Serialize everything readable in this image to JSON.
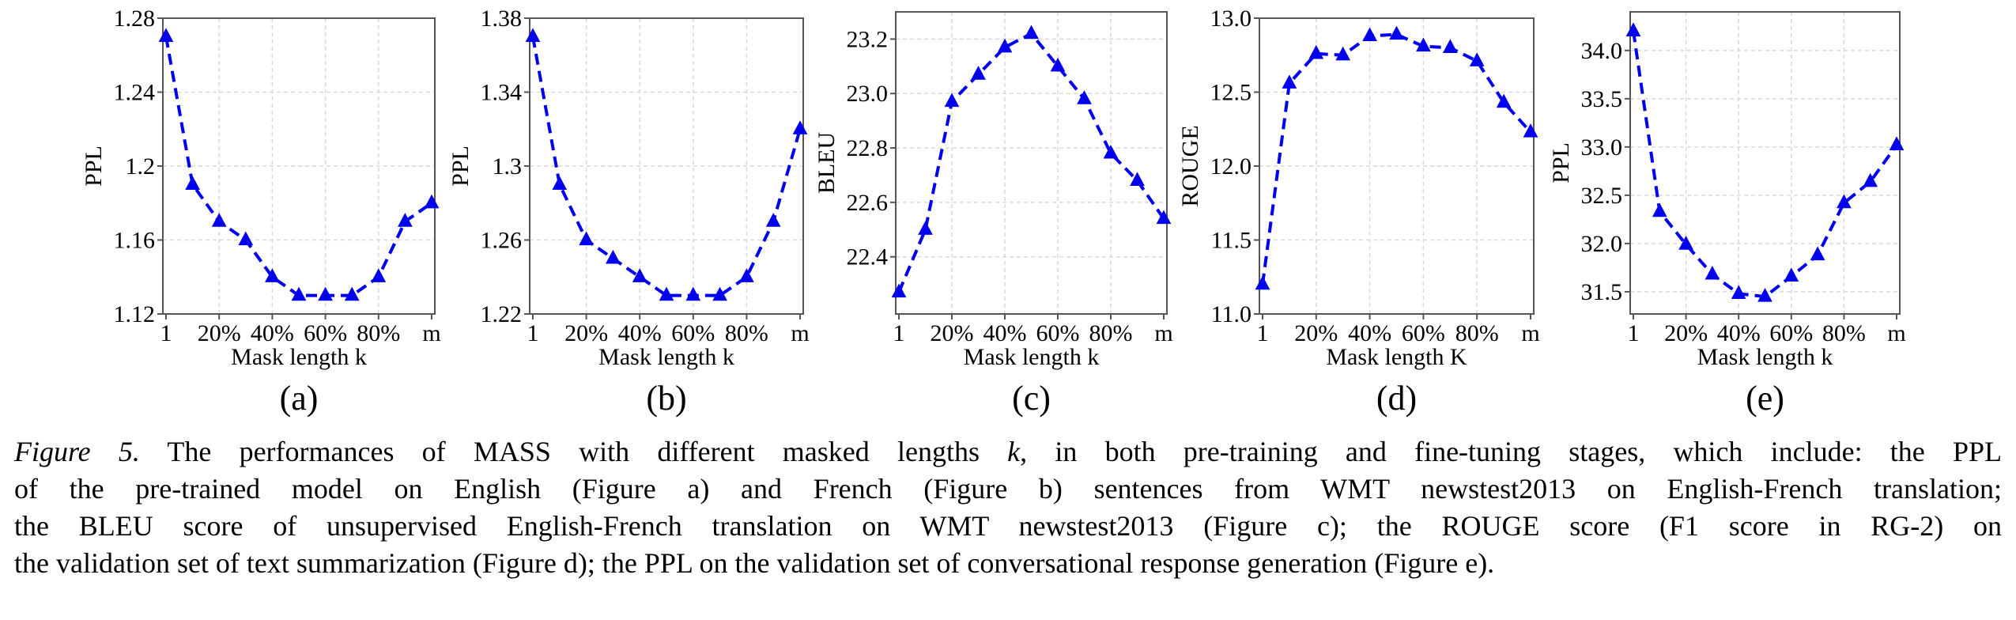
{
  "style": {
    "line_color": "#0000ee",
    "grid_color": "#d9d9d9",
    "axis_color": "#555555"
  },
  "chart_data": [
    {
      "type": "line",
      "panel": "(a)",
      "ylabel": "PPL",
      "xlabel": "Mask length k",
      "categories": [
        "1",
        "10%",
        "20%",
        "30%",
        "40%",
        "50%",
        "60%",
        "70%",
        "80%",
        "90%",
        "m"
      ],
      "xtick_labels": [
        "1",
        "20%",
        "40%",
        "60%",
        "80%",
        "m"
      ],
      "values": [
        1.27,
        1.19,
        1.17,
        1.16,
        1.14,
        1.13,
        1.13,
        1.13,
        1.14,
        1.17,
        1.18
      ],
      "ylim": [
        1.12,
        1.28
      ],
      "yticks": [
        1.12,
        1.16,
        1.2,
        1.24,
        1.28
      ],
      "ytick_labels": [
        "1.12",
        "1.16",
        "1.2",
        "1.24",
        "1.28"
      ],
      "grid": true,
      "marker": "triangle",
      "linestyle": "dashed"
    },
    {
      "type": "line",
      "panel": "(b)",
      "ylabel": "PPL",
      "xlabel": "Mask length k",
      "categories": [
        "1",
        "10%",
        "20%",
        "30%",
        "40%",
        "50%",
        "60%",
        "70%",
        "80%",
        "90%",
        "m"
      ],
      "xtick_labels": [
        "1",
        "20%",
        "40%",
        "60%",
        "80%",
        "m"
      ],
      "values": [
        1.37,
        1.29,
        1.26,
        1.25,
        1.24,
        1.23,
        1.23,
        1.23,
        1.24,
        1.27,
        1.32
      ],
      "ylim": [
        1.22,
        1.38
      ],
      "yticks": [
        1.22,
        1.26,
        1.3,
        1.34,
        1.38
      ],
      "ytick_labels": [
        "1.22",
        "1.26",
        "1.3",
        "1.34",
        "1.38"
      ],
      "grid": true,
      "marker": "triangle",
      "linestyle": "dashed"
    },
    {
      "type": "line",
      "panel": "(c)",
      "ylabel": "BLEU",
      "xlabel": "Mask length k",
      "categories": [
        "1",
        "10%",
        "20%",
        "30%",
        "40%",
        "50%",
        "60%",
        "70%",
        "80%",
        "90%",
        "m"
      ],
      "xtick_labels": [
        "1",
        "20%",
        "40%",
        "60%",
        "80%",
        "m"
      ],
      "values": [
        22.27,
        22.5,
        22.97,
        23.07,
        23.17,
        23.22,
        23.1,
        22.98,
        22.78,
        22.68,
        22.54
      ],
      "ylim": [
        22.19,
        23.3
      ],
      "yticks": [
        22.4,
        22.6,
        22.8,
        23.0,
        23.2
      ],
      "ytick_labels": [
        "22.4",
        "22.6",
        "22.8",
        "23.0",
        "23.2"
      ],
      "grid": true,
      "marker": "triangle",
      "linestyle": "dashed"
    },
    {
      "type": "line",
      "panel": "(d)",
      "ylabel": "ROUGE",
      "xlabel": "Mask length K",
      "categories": [
        "1",
        "10%",
        "20%",
        "30%",
        "40%",
        "50%",
        "60%",
        "70%",
        "80%",
        "90%",
        "m"
      ],
      "xtick_labels": [
        "1",
        "20%",
        "40%",
        "60%",
        "80%",
        "m"
      ],
      "values": [
        11.2,
        12.56,
        12.76,
        12.75,
        12.88,
        12.89,
        12.81,
        12.8,
        12.71,
        12.43,
        12.23
      ],
      "ylim": [
        11.0,
        13.0
      ],
      "yticks": [
        11.0,
        11.5,
        12.0,
        12.5,
        13.0
      ],
      "ytick_labels": [
        "11.0",
        "11.5",
        "12.0",
        "12.5",
        "13.0"
      ],
      "grid": true,
      "marker": "triangle",
      "linestyle": "dashed"
    },
    {
      "type": "line",
      "panel": "(e)",
      "ylabel": "PPL",
      "xlabel": "Mask length k",
      "categories": [
        "1",
        "10%",
        "20%",
        "30%",
        "40%",
        "50%",
        "60%",
        "70%",
        "80%",
        "90%",
        "m"
      ],
      "xtick_labels": [
        "1",
        "20%",
        "40%",
        "60%",
        "80%",
        "m"
      ],
      "values": [
        34.2,
        32.33,
        31.99,
        31.68,
        31.48,
        31.45,
        31.66,
        31.88,
        32.42,
        32.64,
        33.02
      ],
      "ylim": [
        31.27,
        34.4
      ],
      "yticks": [
        31.5,
        32.0,
        32.5,
        33.0,
        33.5,
        34.0
      ],
      "ytick_labels": [
        "31.5",
        "32.0",
        "32.5",
        "33.0",
        "33.5",
        "34.0"
      ],
      "grid": true,
      "marker": "triangle",
      "linestyle": "dashed"
    }
  ],
  "caption": {
    "label": "Figure 5.",
    "line1_a": " The performances of MASS with different masked lengths ",
    "line1_k": "k",
    "line1_b": ", in both pre-training and fine-tuning stages, which include: the PPL",
    "line2": "of the pre-trained model on English (Figure a) and French (Figure b) sentences from WMT newstest2013 on English-French translation;",
    "line3": "the BLEU score of unsupervised English-French translation on WMT newstest2013 (Figure c); the ROUGE score (F1 score in RG-2) on",
    "line4": "the validation set of text summarization (Figure d); the PPL on the validation set of conversational response generation (Figure e)."
  }
}
